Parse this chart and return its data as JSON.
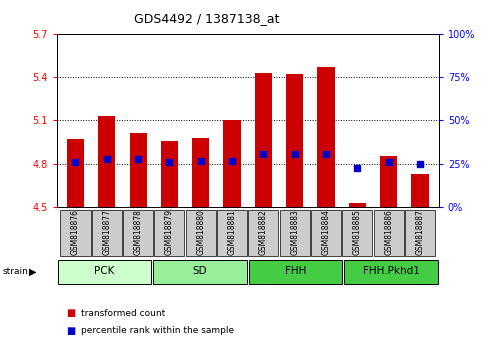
{
  "title": "GDS4492 / 1387138_at",
  "samples": [
    "GSM818876",
    "GSM818877",
    "GSM818878",
    "GSM818879",
    "GSM818880",
    "GSM818881",
    "GSM818882",
    "GSM818883",
    "GSM818884",
    "GSM818885",
    "GSM818886",
    "GSM818887"
  ],
  "bar_tops": [
    4.97,
    5.13,
    5.01,
    4.96,
    4.98,
    5.1,
    5.43,
    5.42,
    5.47,
    4.53,
    4.85,
    4.73
  ],
  "bar_base": 4.5,
  "percentile_values": [
    4.81,
    4.83,
    4.83,
    4.81,
    4.82,
    4.82,
    4.87,
    4.87,
    4.87,
    4.77,
    4.81,
    4.8
  ],
  "ylim": [
    4.5,
    5.7
  ],
  "yticks_left": [
    4.5,
    4.8,
    5.1,
    5.4,
    5.7
  ],
  "yticks_right": [
    0,
    25,
    50,
    75,
    100
  ],
  "bar_color": "#cc0000",
  "percentile_color": "#0000cc",
  "groups": [
    {
      "label": "PCK",
      "start": 0,
      "end": 3,
      "color": "#ccffcc"
    },
    {
      "label": "SD",
      "start": 3,
      "end": 6,
      "color": "#99ee99"
    },
    {
      "label": "FHH",
      "start": 6,
      "end": 9,
      "color": "#44cc44"
    },
    {
      "label": "FHH.Pkhd1",
      "start": 9,
      "end": 12,
      "color": "#44cc44"
    }
  ],
  "strain_label": "strain",
  "legend_red": "transformed count",
  "legend_blue": "percentile rank within the sample",
  "grid_yticks": [
    4.8,
    5.1,
    5.4
  ],
  "tick_area_color": "#cccccc"
}
